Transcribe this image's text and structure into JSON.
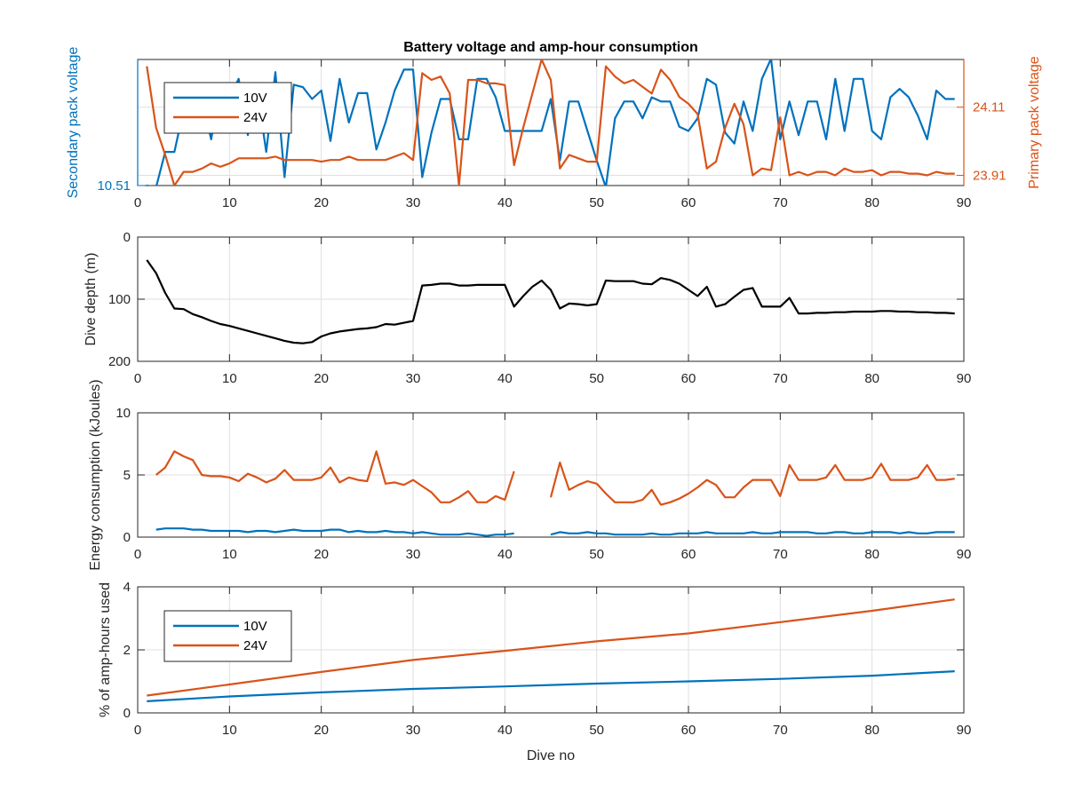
{
  "colors": {
    "blue": "#0072bd",
    "orange": "#d95319",
    "black": "#000000",
    "axis": "#262626",
    "grid": "#dfdfdf"
  },
  "chart_data": [
    {
      "type": "line",
      "title": "Battery voltage and amp-hour consumption",
      "xlim": [
        0,
        90
      ],
      "xticks": [
        0,
        10,
        20,
        30,
        40,
        50,
        60,
        70,
        80,
        90
      ],
      "ylabel_left": "Secondary pack voltage",
      "ylabel_right": "Primary pack voltage",
      "ylim_left": [
        10.51,
        10.66
      ],
      "ylim_right": [
        23.88,
        24.25
      ],
      "yticks_left": [
        "10.51"
      ],
      "yticks_right": [
        "24.11",
        "23.91"
      ],
      "yticks_right_values": [
        24.11,
        23.91
      ],
      "grid": true,
      "legend": {
        "position": "top-left",
        "entries": [
          "10V",
          "24V"
        ]
      },
      "series": [
        {
          "name": "10V",
          "axis": "left",
          "color": "blue",
          "x": [
            1,
            2,
            3,
            4,
            5,
            6,
            7,
            8,
            9,
            10,
            11,
            12,
            13,
            14,
            15,
            16,
            17,
            18,
            19,
            20,
            21,
            22,
            23,
            24,
            25,
            26,
            27,
            28,
            29,
            30,
            31,
            32,
            33,
            34,
            35,
            36,
            37,
            38,
            39,
            40,
            41,
            42,
            43,
            44,
            45,
            46,
            47,
            48,
            49,
            50,
            51,
            52,
            53,
            54,
            55,
            56,
            57,
            58,
            59,
            60,
            61,
            62,
            63,
            64,
            65,
            66,
            67,
            68,
            69,
            70,
            71,
            72,
            73,
            74,
            75,
            76,
            77,
            78,
            79,
            80,
            81,
            82,
            83,
            84,
            85,
            86,
            87,
            88,
            89
          ],
          "y": [
            10.51,
            10.508,
            10.55,
            10.55,
            10.6,
            10.6,
            10.612,
            10.565,
            10.625,
            10.615,
            10.637,
            10.57,
            10.625,
            10.55,
            10.645,
            10.52,
            10.63,
            10.627,
            10.613,
            10.623,
            10.563,
            10.637,
            10.585,
            10.62,
            10.62,
            10.553,
            10.585,
            10.623,
            10.648,
            10.648,
            10.52,
            10.573,
            10.613,
            10.613,
            10.565,
            10.565,
            10.637,
            10.637,
            10.615,
            10.575,
            10.575,
            10.575,
            10.575,
            10.575,
            10.613,
            10.54,
            10.61,
            10.61,
            10.575,
            10.54,
            10.508,
            10.59,
            10.61,
            10.61,
            10.59,
            10.615,
            10.61,
            10.61,
            10.58,
            10.575,
            10.59,
            10.637,
            10.63,
            10.573,
            10.56,
            10.61,
            10.575,
            10.637,
            10.661,
            10.565,
            10.61,
            10.57,
            10.61,
            10.61,
            10.565,
            10.637,
            10.575,
            10.637,
            10.637,
            10.575,
            10.565,
            10.615,
            10.625,
            10.615,
            10.593,
            10.565,
            10.623,
            10.613,
            10.613
          ]
        },
        {
          "name": "24V",
          "axis": "right",
          "color": "orange",
          "x": [
            1,
            2,
            3,
            4,
            5,
            6,
            7,
            8,
            9,
            10,
            11,
            12,
            13,
            14,
            15,
            16,
            17,
            18,
            19,
            20,
            21,
            22,
            23,
            24,
            25,
            26,
            27,
            28,
            29,
            30,
            31,
            32,
            33,
            34,
            35,
            36,
            37,
            38,
            39,
            40,
            41,
            42,
            43,
            44,
            45,
            46,
            47,
            48,
            49,
            50,
            51,
            52,
            53,
            54,
            55,
            56,
            57,
            58,
            59,
            60,
            61,
            62,
            63,
            64,
            65,
            66,
            67,
            68,
            69,
            70,
            71,
            72,
            73,
            74,
            75,
            76,
            77,
            78,
            79,
            80,
            81,
            82,
            83,
            84,
            85,
            86,
            87,
            88,
            89
          ],
          "y": [
            24.23,
            24.05,
            23.97,
            23.88,
            23.92,
            23.92,
            23.93,
            23.945,
            23.935,
            23.945,
            23.96,
            23.96,
            23.96,
            23.96,
            23.965,
            23.955,
            23.955,
            23.955,
            23.955,
            23.95,
            23.955,
            23.955,
            23.965,
            23.955,
            23.955,
            23.955,
            23.955,
            23.965,
            23.975,
            23.955,
            24.21,
            24.19,
            24.2,
            24.15,
            23.88,
            24.19,
            24.19,
            24.18,
            24.18,
            24.175,
            23.94,
            24.05,
            24.15,
            24.25,
            24.19,
            23.93,
            23.97,
            23.96,
            23.95,
            23.95,
            24.23,
            24.2,
            24.18,
            24.19,
            24.17,
            24.15,
            24.22,
            24.19,
            24.14,
            24.12,
            24.09,
            23.93,
            23.95,
            24.05,
            24.12,
            24.06,
            23.91,
            23.93,
            23.925,
            24.08,
            23.91,
            23.92,
            23.91,
            23.92,
            23.92,
            23.91,
            23.93,
            23.92,
            23.92,
            23.925,
            23.91,
            23.92,
            23.92,
            23.915,
            23.915,
            23.91,
            23.92,
            23.915,
            23.915
          ]
        }
      ]
    },
    {
      "type": "line",
      "ylabel": "Dive depth (m)",
      "xlim": [
        0,
        90
      ],
      "ylim": [
        200,
        0
      ],
      "y_reversed": true,
      "yticks": [
        0,
        100,
        200
      ],
      "grid": true,
      "series": [
        {
          "color": "black",
          "x": [
            1,
            2,
            3,
            4,
            5,
            6,
            7,
            8,
            9,
            10,
            11,
            12,
            13,
            14,
            15,
            16,
            17,
            18,
            19,
            20,
            21,
            22,
            23,
            24,
            25,
            26,
            27,
            28,
            29,
            30,
            31,
            32,
            33,
            34,
            35,
            36,
            37,
            38,
            39,
            40,
            41,
            42,
            43,
            44,
            45,
            46,
            47,
            48,
            49,
            50,
            51,
            52,
            53,
            54,
            55,
            56,
            57,
            58,
            59,
            60,
            61,
            62,
            63,
            64,
            65,
            66,
            67,
            68,
            69,
            70,
            71,
            72,
            73,
            74,
            75,
            76,
            77,
            78,
            79,
            80,
            81,
            82,
            83,
            84,
            85,
            86,
            87,
            88,
            89
          ],
          "y": [
            37,
            58,
            90,
            115,
            116,
            124,
            129,
            135,
            140,
            143,
            147,
            151,
            155,
            159,
            163,
            167,
            170,
            171,
            169,
            160,
            155,
            152,
            150,
            148,
            147,
            145,
            140,
            141,
            138,
            135,
            78,
            77,
            75,
            75,
            78,
            78,
            77,
            77,
            77,
            77,
            112,
            95,
            80,
            70,
            85,
            115,
            107,
            108,
            110,
            108,
            70,
            71,
            71,
            71,
            75,
            76,
            66,
            69,
            75,
            85,
            95,
            80,
            112,
            108,
            96,
            85,
            82,
            112,
            112,
            112,
            98,
            123,
            123,
            122,
            122,
            121,
            121,
            120,
            120,
            120,
            119,
            119,
            120,
            120,
            121,
            121,
            122,
            122,
            123
          ]
        }
      ]
    },
    {
      "type": "line",
      "ylabel": "Energy consumption (kJoules)",
      "xlim": [
        0,
        90
      ],
      "ylim": [
        0,
        10
      ],
      "yticks": [
        0,
        5,
        10
      ],
      "grid": true,
      "series": [
        {
          "name": "10V",
          "color": "blue",
          "x": [
            2,
            3,
            4,
            5,
            6,
            7,
            8,
            9,
            10,
            11,
            12,
            13,
            14,
            15,
            16,
            17,
            18,
            19,
            20,
            21,
            22,
            23,
            24,
            25,
            26,
            27,
            28,
            29,
            30,
            31,
            32,
            33,
            34,
            35,
            36,
            37,
            38,
            39,
            40,
            41,
            null,
            45,
            46,
            47,
            48,
            49,
            50,
            51,
            52,
            53,
            54,
            55,
            56,
            57,
            58,
            59,
            60,
            61,
            62,
            63,
            64,
            65,
            66,
            67,
            68,
            69,
            70,
            71,
            72,
            73,
            74,
            75,
            76,
            77,
            78,
            79,
            80,
            81,
            82,
            83,
            84,
            85,
            86,
            87,
            88,
            89
          ],
          "y": [
            0.6,
            0.7,
            0.7,
            0.7,
            0.6,
            0.6,
            0.5,
            0.5,
            0.5,
            0.5,
            0.4,
            0.5,
            0.5,
            0.4,
            0.5,
            0.6,
            0.5,
            0.5,
            0.5,
            0.6,
            0.6,
            0.4,
            0.5,
            0.4,
            0.4,
            0.5,
            0.4,
            0.4,
            0.3,
            0.4,
            0.3,
            0.2,
            0.2,
            0.2,
            0.3,
            0.2,
            0.1,
            0.2,
            0.2,
            0.3,
            null,
            0.2,
            0.4,
            0.3,
            0.3,
            0.4,
            0.3,
            0.3,
            0.2,
            0.2,
            0.2,
            0.2,
            0.3,
            0.2,
            0.2,
            0.3,
            0.3,
            0.3,
            0.4,
            0.3,
            0.3,
            0.3,
            0.3,
            0.4,
            0.3,
            0.3,
            0.4,
            0.4,
            0.4,
            0.4,
            0.3,
            0.3,
            0.4,
            0.4,
            0.3,
            0.3,
            0.4,
            0.4,
            0.4,
            0.3,
            0.4,
            0.3,
            0.3,
            0.4,
            0.4,
            0.4
          ]
        },
        {
          "name": "24V",
          "color": "orange",
          "x": [
            2,
            3,
            4,
            5,
            6,
            7,
            8,
            9,
            10,
            11,
            12,
            13,
            14,
            15,
            16,
            17,
            18,
            19,
            20,
            21,
            22,
            23,
            24,
            25,
            26,
            27,
            28,
            29,
            30,
            31,
            32,
            33,
            34,
            35,
            36,
            37,
            38,
            39,
            40,
            41,
            null,
            45,
            46,
            47,
            48,
            49,
            50,
            51,
            52,
            53,
            54,
            55,
            56,
            57,
            58,
            59,
            60,
            61,
            62,
            63,
            64,
            65,
            66,
            67,
            68,
            69,
            70,
            71,
            72,
            73,
            74,
            75,
            76,
            77,
            78,
            79,
            80,
            81,
            82,
            83,
            84,
            85,
            86,
            87,
            88,
            89
          ],
          "y": [
            5.0,
            5.6,
            6.9,
            6.5,
            6.2,
            5.0,
            4.9,
            4.9,
            4.8,
            4.5,
            5.1,
            4.8,
            4.4,
            4.7,
            5.4,
            4.6,
            4.6,
            4.6,
            4.8,
            5.6,
            4.4,
            4.8,
            4.6,
            4.5,
            6.9,
            4.3,
            4.4,
            4.2,
            4.6,
            4.1,
            3.6,
            2.8,
            2.8,
            3.2,
            3.7,
            2.8,
            2.8,
            3.3,
            3.0,
            5.3,
            null,
            3.2,
            6.0,
            3.8,
            4.2,
            4.5,
            4.3,
            3.5,
            2.8,
            2.8,
            2.8,
            3.0,
            3.8,
            2.6,
            2.8,
            3.1,
            3.5,
            4.0,
            4.6,
            4.2,
            3.2,
            3.2,
            4.0,
            4.6,
            4.6,
            4.6,
            3.3,
            5.8,
            4.6,
            4.6,
            4.6,
            4.8,
            5.8,
            4.6,
            4.6,
            4.6,
            4.8,
            5.9,
            4.6,
            4.6,
            4.6,
            4.8,
            5.8,
            4.6,
            4.6,
            4.7
          ]
        }
      ]
    },
    {
      "type": "line",
      "ylabel": "% of amp-hours used",
      "xlabel": "Dive no",
      "xlim": [
        0,
        90
      ],
      "ylim": [
        0,
        4
      ],
      "yticks": [
        0,
        2,
        4
      ],
      "grid": true,
      "legend": {
        "position": "left",
        "entries": [
          "10V",
          "24V"
        ]
      },
      "series": [
        {
          "name": "10V",
          "color": "blue",
          "x": [
            1,
            10,
            20,
            30,
            40,
            50,
            60,
            70,
            80,
            89
          ],
          "y": [
            0.37,
            0.52,
            0.65,
            0.76,
            0.84,
            0.93,
            1.0,
            1.08,
            1.18,
            1.32
          ]
        },
        {
          "name": "24V",
          "color": "orange",
          "x": [
            1,
            10,
            20,
            30,
            40,
            50,
            60,
            70,
            80,
            89
          ],
          "y": [
            0.55,
            0.9,
            1.3,
            1.68,
            1.97,
            2.27,
            2.52,
            2.88,
            3.24,
            3.6
          ]
        }
      ]
    }
  ]
}
